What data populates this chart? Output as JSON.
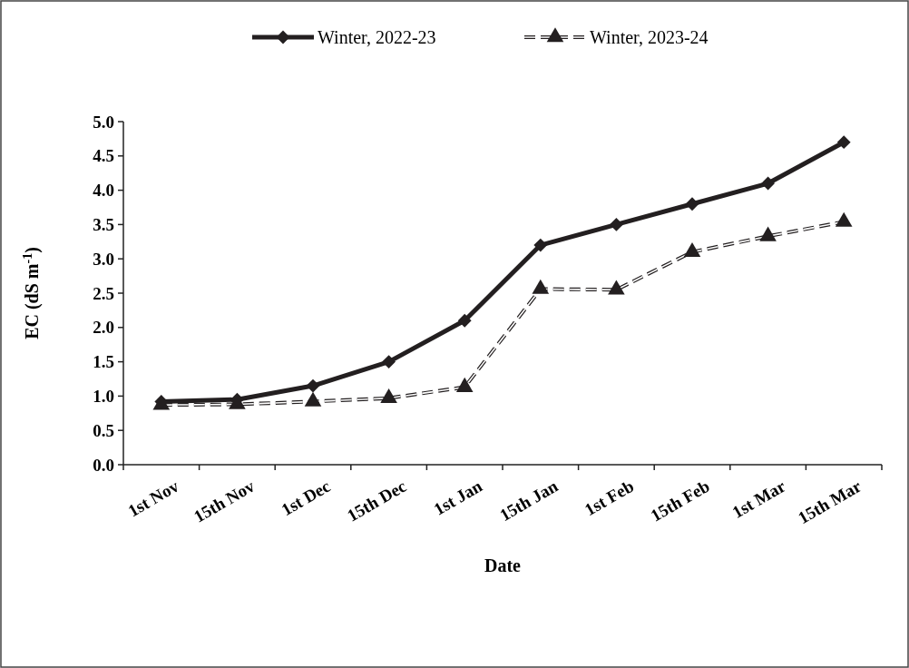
{
  "chart_data": {
    "type": "line",
    "xlabel": "Date",
    "ylabel": "EC (dS m$^{-1}$)",
    "categories": [
      "1st Nov",
      "15th Nov",
      "1st Dec",
      "15th Dec",
      "1st Jan",
      "15th Jan",
      "1st Feb",
      "15th Feb",
      "1st Mar",
      "15th Mar"
    ],
    "ylim": [
      0,
      5
    ],
    "yticks": [
      {
        "value": 0,
        "label": "0.0"
      },
      {
        "value": 0.5,
        "label": "0.5"
      },
      {
        "value": 1,
        "label": "1.0"
      },
      {
        "value": 1.5,
        "label": "1.5"
      },
      {
        "value": 2,
        "label": "2.0"
      },
      {
        "value": 2.5,
        "label": "2.5"
      },
      {
        "value": 3,
        "label": "3.0"
      },
      {
        "value": 3.5,
        "label": "3.5"
      },
      {
        "value": 4,
        "label": "4.0"
      },
      {
        "value": 4.5,
        "label": "4.5"
      },
      {
        "value": 5,
        "label": "5.0"
      }
    ],
    "legend": "top",
    "grid": false,
    "series": [
      {
        "name": "Winter, 2022-23",
        "color": "#231f20",
        "marker": "diamond",
        "line_style": "solid",
        "values": [
          0.92,
          0.95,
          1.15,
          1.5,
          2.1,
          3.2,
          3.5,
          3.8,
          4.1,
          4.7
        ]
      },
      {
        "name": "Winter, 2023-24",
        "color": "#231f20",
        "marker": "triangle",
        "line_style": "dashed",
        "values": [
          0.87,
          0.88,
          0.92,
          0.97,
          1.13,
          2.56,
          2.55,
          3.1,
          3.33,
          3.54
        ]
      }
    ]
  }
}
